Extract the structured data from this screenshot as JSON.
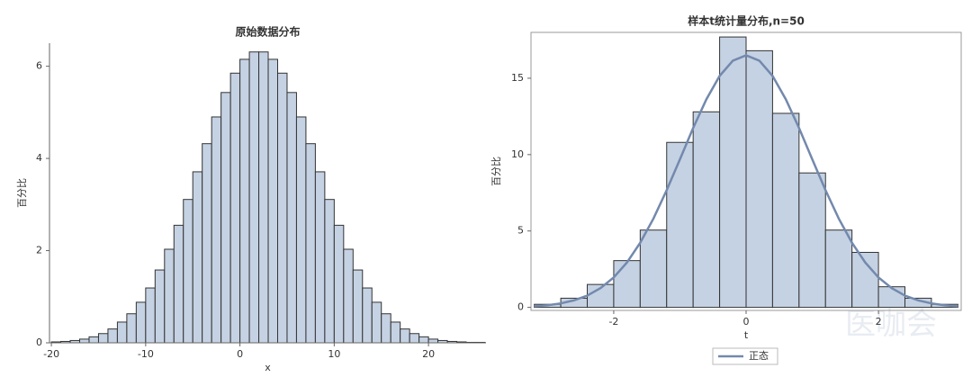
{
  "chart_data": [
    {
      "type": "histogram",
      "title": "原始数据分布",
      "x_label": "x",
      "y_label": "百分比",
      "bins": [
        -20,
        -19,
        -18,
        -17,
        -16,
        -15,
        -14,
        -13,
        -12,
        -11,
        -10,
        -9,
        -8,
        -7,
        -6,
        -5,
        -4,
        -3,
        -2,
        -1,
        0,
        1,
        2,
        3,
        4,
        5,
        6,
        7,
        8,
        9,
        10,
        11,
        12,
        13,
        14,
        15,
        16,
        17,
        18,
        19,
        20,
        21,
        22,
        23,
        24,
        25,
        26
      ],
      "values": [
        0.02,
        0.03,
        0.05,
        0.08,
        0.13,
        0.2,
        0.3,
        0.45,
        0.63,
        0.88,
        1.19,
        1.58,
        2.03,
        2.55,
        3.11,
        3.71,
        4.32,
        4.9,
        5.43,
        5.85,
        6.15,
        6.31,
        6.31,
        6.15,
        5.85,
        5.43,
        4.9,
        4.32,
        3.71,
        3.11,
        2.55,
        2.03,
        1.58,
        1.19,
        0.88,
        0.63,
        0.45,
        0.3,
        0.2,
        0.13,
        0.08,
        0.05,
        0.03,
        0.02,
        0.01,
        0.01
      ],
      "color": "#c5d2e3",
      "xlim": [
        -20.2,
        26.1
      ],
      "ylim": [
        0,
        6.5
      ],
      "xticks": [
        -20,
        -10,
        0,
        10,
        20
      ],
      "yticks": [
        0,
        2,
        4,
        6
      ]
    },
    {
      "type": "histogram",
      "title": "样本t统计量分布,n=50",
      "x_label": "t",
      "y_label": "百分比",
      "bins": [
        -3.2,
        -2.8,
        -2.4,
        -2,
        -1.6,
        -1.2,
        -0.8,
        -0.4,
        0,
        0.4,
        0.8,
        1.2,
        1.6,
        2,
        2.4,
        2.8,
        3.2
      ],
      "values": [
        0.2,
        0.6,
        1.5,
        3.06,
        5.06,
        10.8,
        12.8,
        17.7,
        16.8,
        12.7,
        8.8,
        5.06,
        3.6,
        1.35,
        0.6,
        0.2
      ],
      "color": "#c5d2e3",
      "curve": {
        "name": "正态",
        "color": "#7389ad",
        "x": [
          -3.2,
          -3,
          -2.8,
          -2.6,
          -2.4,
          -2.2,
          -2,
          -1.8,
          -1.6,
          -1.4,
          -1.2,
          -1,
          -0.8,
          -0.6,
          -0.4,
          -0.2,
          0,
          0.2,
          0.4,
          0.6,
          0.8,
          1,
          1.2,
          1.4,
          1.6,
          1.8,
          2,
          2.2,
          2.4,
          2.6,
          2.8,
          3,
          3.2
        ],
        "values": [
          0.07,
          0.14,
          0.26,
          0.46,
          0.77,
          1.26,
          1.96,
          2.94,
          4.23,
          5.81,
          7.67,
          9.69,
          11.74,
          13.62,
          15.15,
          16.15,
          16.5,
          16.15,
          15.15,
          13.62,
          11.74,
          9.69,
          7.67,
          5.81,
          4.23,
          2.94,
          1.96,
          1.26,
          0.77,
          0.46,
          0.26,
          0.14,
          0.07
        ]
      },
      "xlim": [
        -3.25,
        3.25
      ],
      "ylim": [
        -0.2,
        18
      ],
      "xticks": [
        -2,
        0,
        2
      ],
      "yticks": [
        0,
        5,
        10,
        15
      ]
    }
  ],
  "watermark": "医咖会"
}
